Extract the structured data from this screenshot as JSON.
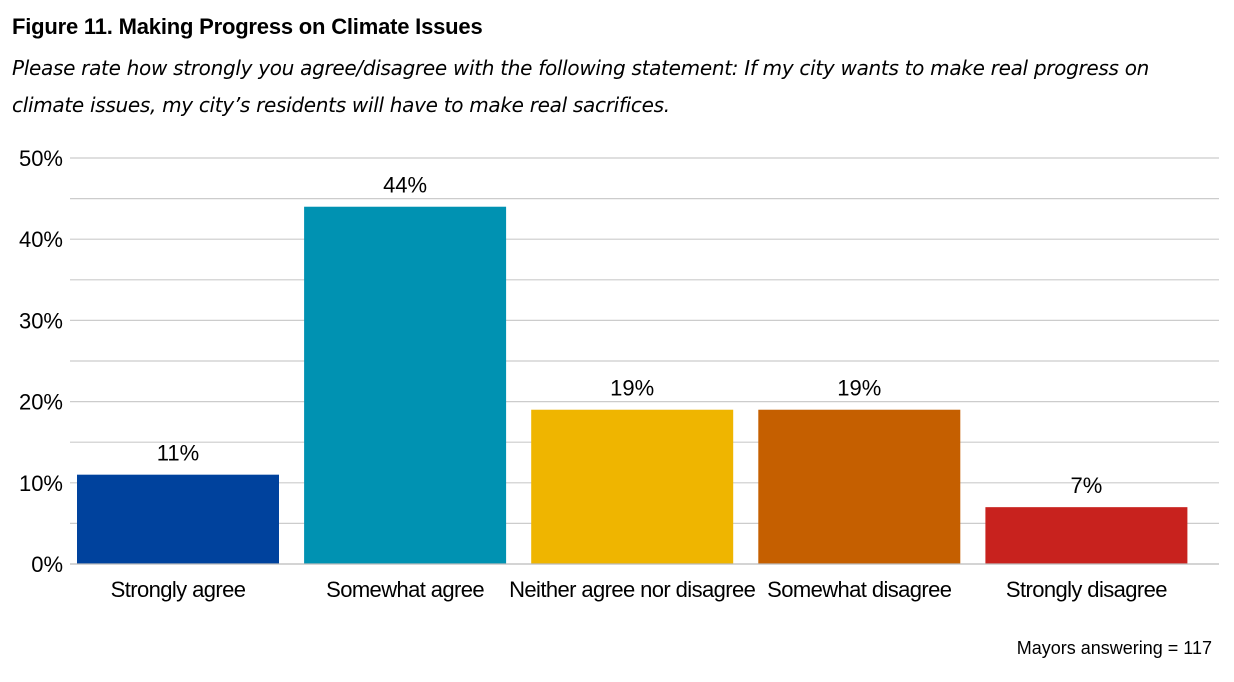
{
  "figure": {
    "title": "Figure 11. Making Progress on Climate Issues",
    "subtitle": "Please rate how strongly you agree/disagree with the following statement: If my city wants to make real progress on climate issues, my city’s residents will have to make real sacrifices.",
    "footnote": "Mayors answering = 117"
  },
  "chart_data": {
    "type": "bar",
    "title": "Figure 11. Making Progress on Climate Issues",
    "subtitle": "Please rate how strongly you agree/disagree with the following statement: If my city wants to make real progress on climate issues, my city’s residents will have to make real sacrifices.",
    "categories": [
      "Strongly agree",
      "Somewhat agree",
      "Neither agree nor disagree",
      "Somewhat disagree",
      "Strongly disagree"
    ],
    "values": [
      11,
      44,
      19,
      19,
      7
    ],
    "value_labels": [
      "11%",
      "44%",
      "19%",
      "19%",
      "7%"
    ],
    "colors": [
      "#00429d",
      "#0092b2",
      "#efb500",
      "#c55f00",
      "#c8221e"
    ],
    "ylim": [
      0,
      50
    ],
    "yticks": [
      0,
      10,
      20,
      30,
      40,
      50
    ],
    "ytick_labels": [
      "0%",
      "10%",
      "20%",
      "30%",
      "40%",
      "50%"
    ],
    "xlabel": "",
    "ylabel": "",
    "grid": true,
    "legend": "none",
    "gridline_color": "#cccccc"
  }
}
